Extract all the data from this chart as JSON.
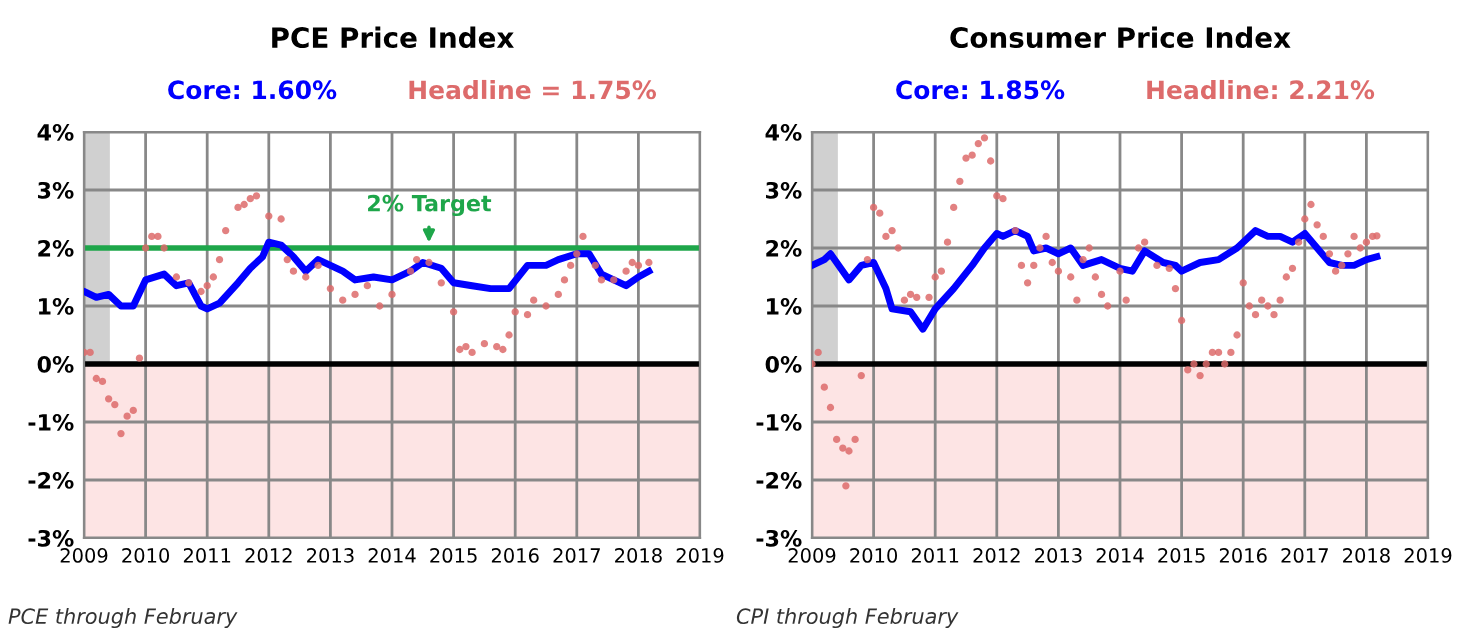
{
  "chart_data": [
    {
      "type": "line",
      "title": "PCE Price Index",
      "annotations": [
        "PCE through February"
      ],
      "grid": true,
      "xlim": [
        2009,
        2019
      ],
      "xticks": [
        2009,
        2010,
        2011,
        2012,
        2013,
        2014,
        2015,
        2016,
        2017,
        2018,
        2019
      ],
      "ylim": [
        -3,
        4
      ],
      "yticks": [
        {
          "value": -3,
          "label": "-3%"
        },
        {
          "value": -2,
          "label": "-2%"
        },
        {
          "value": -1,
          "label": "-1%"
        },
        {
          "value": 0,
          "label": "0%"
        },
        {
          "value": 1,
          "label": "1%"
        },
        {
          "value": 2,
          "label": "2%"
        },
        {
          "value": 3,
          "label": "3%"
        },
        {
          "value": 4,
          "label": "4%"
        }
      ],
      "bands": [
        {
          "axis": "x",
          "from": 2009,
          "to": 2009.42,
          "color": "#d0d0d0"
        },
        {
          "axis": "y",
          "from": -3,
          "to": 0,
          "color": "#fde4e4"
        }
      ],
      "ref_lines": [
        {
          "axis": "y",
          "value": 0,
          "color": "#000000"
        },
        {
          "axis": "y",
          "value": 2,
          "label": "2% Target",
          "color": "#1ea64a"
        }
      ],
      "series": [
        {
          "name": "Headline = 1.75%",
          "type": "scatter",
          "color": "#dd6b6b",
          "x": [
            2009.0,
            2009.1,
            2009.2,
            2009.3,
            2009.4,
            2009.5,
            2009.6,
            2009.7,
            2009.8,
            2009.9,
            2010.0,
            2010.1,
            2010.2,
            2010.3,
            2010.5,
            2010.7,
            2010.9,
            2011.0,
            2011.1,
            2011.2,
            2011.3,
            2011.5,
            2011.6,
            2011.7,
            2011.8,
            2012.0,
            2012.2,
            2012.3,
            2012.4,
            2012.6,
            2012.8,
            2013.0,
            2013.2,
            2013.4,
            2013.6,
            2013.8,
            2014.0,
            2014.3,
            2014.4,
            2014.6,
            2014.8,
            2015.0,
            2015.1,
            2015.2,
            2015.3,
            2015.5,
            2015.7,
            2015.8,
            2015.9,
            2016.0,
            2016.2,
            2016.3,
            2016.5,
            2016.7,
            2016.8,
            2016.9,
            2017.0,
            2017.1,
            2017.3,
            2017.4,
            2017.6,
            2017.8,
            2017.9,
            2018.0,
            2018.17
          ],
          "values": [
            0.2,
            0.2,
            -0.25,
            -0.3,
            -0.6,
            -0.7,
            -1.2,
            -0.9,
            -0.8,
            0.1,
            2.0,
            2.2,
            2.2,
            2.0,
            1.5,
            1.4,
            1.25,
            1.35,
            1.5,
            1.8,
            2.3,
            2.7,
            2.75,
            2.85,
            2.9,
            2.55,
            2.5,
            1.8,
            1.6,
            1.5,
            1.7,
            1.3,
            1.1,
            1.2,
            1.35,
            1.0,
            1.2,
            1.6,
            1.8,
            1.75,
            1.4,
            0.9,
            0.25,
            0.3,
            0.2,
            0.35,
            0.3,
            0.25,
            0.5,
            0.9,
            0.85,
            1.1,
            1.0,
            1.2,
            1.45,
            1.7,
            1.9,
            2.2,
            1.7,
            1.45,
            1.45,
            1.6,
            1.75,
            1.7,
            1.75
          ]
        },
        {
          "name": "Core: 1.60%",
          "color": "#0000ff",
          "x": [
            2009.0,
            2009.2,
            2009.4,
            2009.6,
            2009.8,
            2010.0,
            2010.3,
            2010.5,
            2010.7,
            2010.9,
            2011.0,
            2011.2,
            2011.5,
            2011.7,
            2011.9,
            2012.0,
            2012.2,
            2012.4,
            2012.6,
            2012.8,
            2013.0,
            2013.2,
            2013.4,
            2013.7,
            2014.0,
            2014.3,
            2014.5,
            2014.8,
            2015.0,
            2015.3,
            2015.6,
            2015.9,
            2016.2,
            2016.5,
            2016.7,
            2017.0,
            2017.2,
            2017.4,
            2017.6,
            2017.8,
            2018.0,
            2018.17
          ],
          "values": [
            1.25,
            1.15,
            1.2,
            1.0,
            1.0,
            1.45,
            1.55,
            1.35,
            1.4,
            1.0,
            0.95,
            1.05,
            1.4,
            1.65,
            1.85,
            2.1,
            2.05,
            1.85,
            1.6,
            1.8,
            1.7,
            1.6,
            1.45,
            1.5,
            1.45,
            1.6,
            1.75,
            1.65,
            1.4,
            1.35,
            1.3,
            1.3,
            1.7,
            1.7,
            1.8,
            1.9,
            1.9,
            1.55,
            1.45,
            1.35,
            1.5,
            1.6
          ]
        }
      ]
    },
    {
      "type": "line",
      "title": "Consumer Price Index",
      "annotations": [
        "CPI through February"
      ],
      "grid": true,
      "xlim": [
        2009,
        2019
      ],
      "xticks": [
        2009,
        2010,
        2011,
        2012,
        2013,
        2014,
        2015,
        2016,
        2017,
        2018,
        2019
      ],
      "ylim": [
        -3,
        4
      ],
      "yticks": [
        {
          "value": -3,
          "label": "-3%"
        },
        {
          "value": -2,
          "label": "-2%"
        },
        {
          "value": -1,
          "label": "-1%"
        },
        {
          "value": 0,
          "label": "0%"
        },
        {
          "value": 1,
          "label": "1%"
        },
        {
          "value": 2,
          "label": "2%"
        },
        {
          "value": 3,
          "label": "3%"
        },
        {
          "value": 4,
          "label": "4%"
        }
      ],
      "bands": [
        {
          "axis": "x",
          "from": 2009,
          "to": 2009.42,
          "color": "#d0d0d0"
        },
        {
          "axis": "y",
          "from": -3,
          "to": 0,
          "color": "#fde4e4"
        }
      ],
      "ref_lines": [
        {
          "axis": "y",
          "value": 0,
          "color": "#000000"
        }
      ],
      "series": [
        {
          "name": "Headline: 2.21%",
          "type": "scatter",
          "color": "#dd6b6b",
          "x": [
            2009.0,
            2009.1,
            2009.2,
            2009.3,
            2009.4,
            2009.5,
            2009.55,
            2009.6,
            2009.7,
            2009.8,
            2009.9,
            2010.0,
            2010.1,
            2010.2,
            2010.3,
            2010.4,
            2010.5,
            2010.6,
            2010.7,
            2010.9,
            2011.0,
            2011.1,
            2011.2,
            2011.3,
            2011.4,
            2011.5,
            2011.6,
            2011.7,
            2011.8,
            2011.9,
            2012.0,
            2012.1,
            2012.3,
            2012.4,
            2012.5,
            2012.6,
            2012.7,
            2012.8,
            2012.9,
            2013.0,
            2013.2,
            2013.3,
            2013.4,
            2013.5,
            2013.6,
            2013.7,
            2013.8,
            2014.0,
            2014.1,
            2014.3,
            2014.4,
            2014.6,
            2014.8,
            2014.9,
            2015.0,
            2015.1,
            2015.2,
            2015.3,
            2015.4,
            2015.5,
            2015.6,
            2015.7,
            2015.8,
            2015.9,
            2016.0,
            2016.1,
            2016.2,
            2016.3,
            2016.4,
            2016.5,
            2016.6,
            2016.7,
            2016.8,
            2016.9,
            2017.0,
            2017.1,
            2017.2,
            2017.3,
            2017.4,
            2017.5,
            2017.6,
            2017.7,
            2017.8,
            2017.9,
            2018.0,
            2018.1,
            2018.17
          ],
          "values": [
            0.0,
            0.2,
            -0.4,
            -0.75,
            -1.3,
            -1.45,
            -2.1,
            -1.5,
            -1.3,
            -0.2,
            1.8,
            2.7,
            2.6,
            2.2,
            2.3,
            2.0,
            1.1,
            1.2,
            1.15,
            1.15,
            1.5,
            1.6,
            2.1,
            2.7,
            3.15,
            3.55,
            3.6,
            3.8,
            3.9,
            3.5,
            2.9,
            2.85,
            2.3,
            1.7,
            1.4,
            1.7,
            2.0,
            2.2,
            1.75,
            1.6,
            1.5,
            1.1,
            1.8,
            2.0,
            1.5,
            1.2,
            1.0,
            1.6,
            1.1,
            2.0,
            2.1,
            1.7,
            1.65,
            1.3,
            0.75,
            -0.1,
            0.0,
            -0.2,
            0.0,
            0.2,
            0.2,
            0.0,
            0.2,
            0.5,
            1.4,
            1.0,
            0.85,
            1.1,
            1.0,
            0.85,
            1.1,
            1.5,
            1.65,
            2.1,
            2.5,
            2.75,
            2.4,
            2.2,
            1.9,
            1.6,
            1.7,
            1.9,
            2.2,
            2.0,
            2.1,
            2.2,
            2.21
          ]
        },
        {
          "name": "Core: 1.85%",
          "color": "#0000ff",
          "x": [
            2009.0,
            2009.2,
            2009.3,
            2009.5,
            2009.6,
            2009.8,
            2010.0,
            2010.2,
            2010.3,
            2010.6,
            2010.8,
            2011.0,
            2011.3,
            2011.6,
            2011.8,
            2012.0,
            2012.1,
            2012.3,
            2012.5,
            2012.6,
            2012.8,
            2013.0,
            2013.2,
            2013.4,
            2013.7,
            2014.0,
            2014.2,
            2014.4,
            2014.7,
            2014.9,
            2015.0,
            2015.3,
            2015.6,
            2015.9,
            2016.0,
            2016.2,
            2016.4,
            2016.6,
            2016.8,
            2017.0,
            2017.2,
            2017.4,
            2017.6,
            2017.8,
            2018.0,
            2018.17
          ],
          "values": [
            1.7,
            1.8,
            1.9,
            1.6,
            1.45,
            1.7,
            1.75,
            1.3,
            0.95,
            0.9,
            0.6,
            0.95,
            1.3,
            1.7,
            2.0,
            2.25,
            2.2,
            2.3,
            2.2,
            1.95,
            2.0,
            1.9,
            2.0,
            1.7,
            1.8,
            1.65,
            1.6,
            1.95,
            1.75,
            1.7,
            1.6,
            1.75,
            1.8,
            2.0,
            2.1,
            2.3,
            2.2,
            2.2,
            2.1,
            2.25,
            2.0,
            1.75,
            1.7,
            1.7,
            1.8,
            1.85
          ]
        }
      ]
    }
  ]
}
